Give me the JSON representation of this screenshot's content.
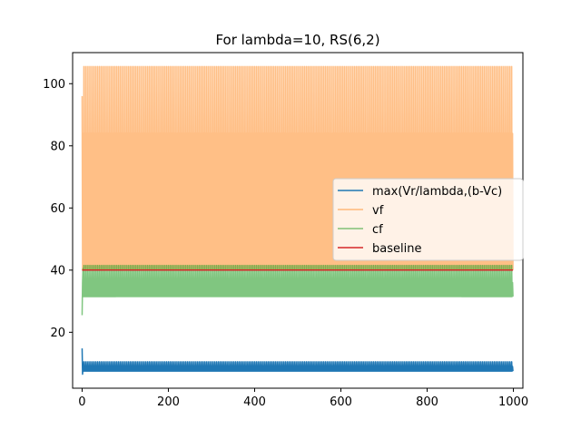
{
  "chart_data": {
    "type": "line",
    "title": "For lambda=10, RS(6,2)",
    "xlabel": "",
    "ylabel": "",
    "xlim": [
      -22,
      1022
    ],
    "ylim": [
      2,
      110
    ],
    "xticks": [
      0,
      200,
      400,
      600,
      800,
      1000
    ],
    "yticks": [
      20,
      40,
      60,
      80,
      100
    ],
    "grid": false,
    "legend_position": "center-right",
    "n_points": 1000,
    "series": [
      {
        "name": "max(Vr/lambda,(b-Vc)",
        "color": "#1f77b4",
        "alpha": 1.0,
        "start": [
          14.8,
          6.5,
          8.0
        ],
        "low": 7.5,
        "high": 10.5,
        "mid": 9.0
      },
      {
        "name": "vf",
        "color": "#ff7f0e",
        "alpha": 0.5,
        "start": [
          96.0,
          40.0,
          84.0
        ],
        "low": 40.0,
        "high": 105.5,
        "mid": 84.0
      },
      {
        "name": "cf",
        "color": "#2ca02c",
        "alpha": 0.6,
        "start": [
          25.5,
          36.0,
          40.5
        ],
        "low": 31.5,
        "high": 41.5,
        "mid": 36.0
      },
      {
        "name": "baseline",
        "color": "#d62728",
        "alpha": 1.0,
        "constant": 40
      }
    ]
  }
}
